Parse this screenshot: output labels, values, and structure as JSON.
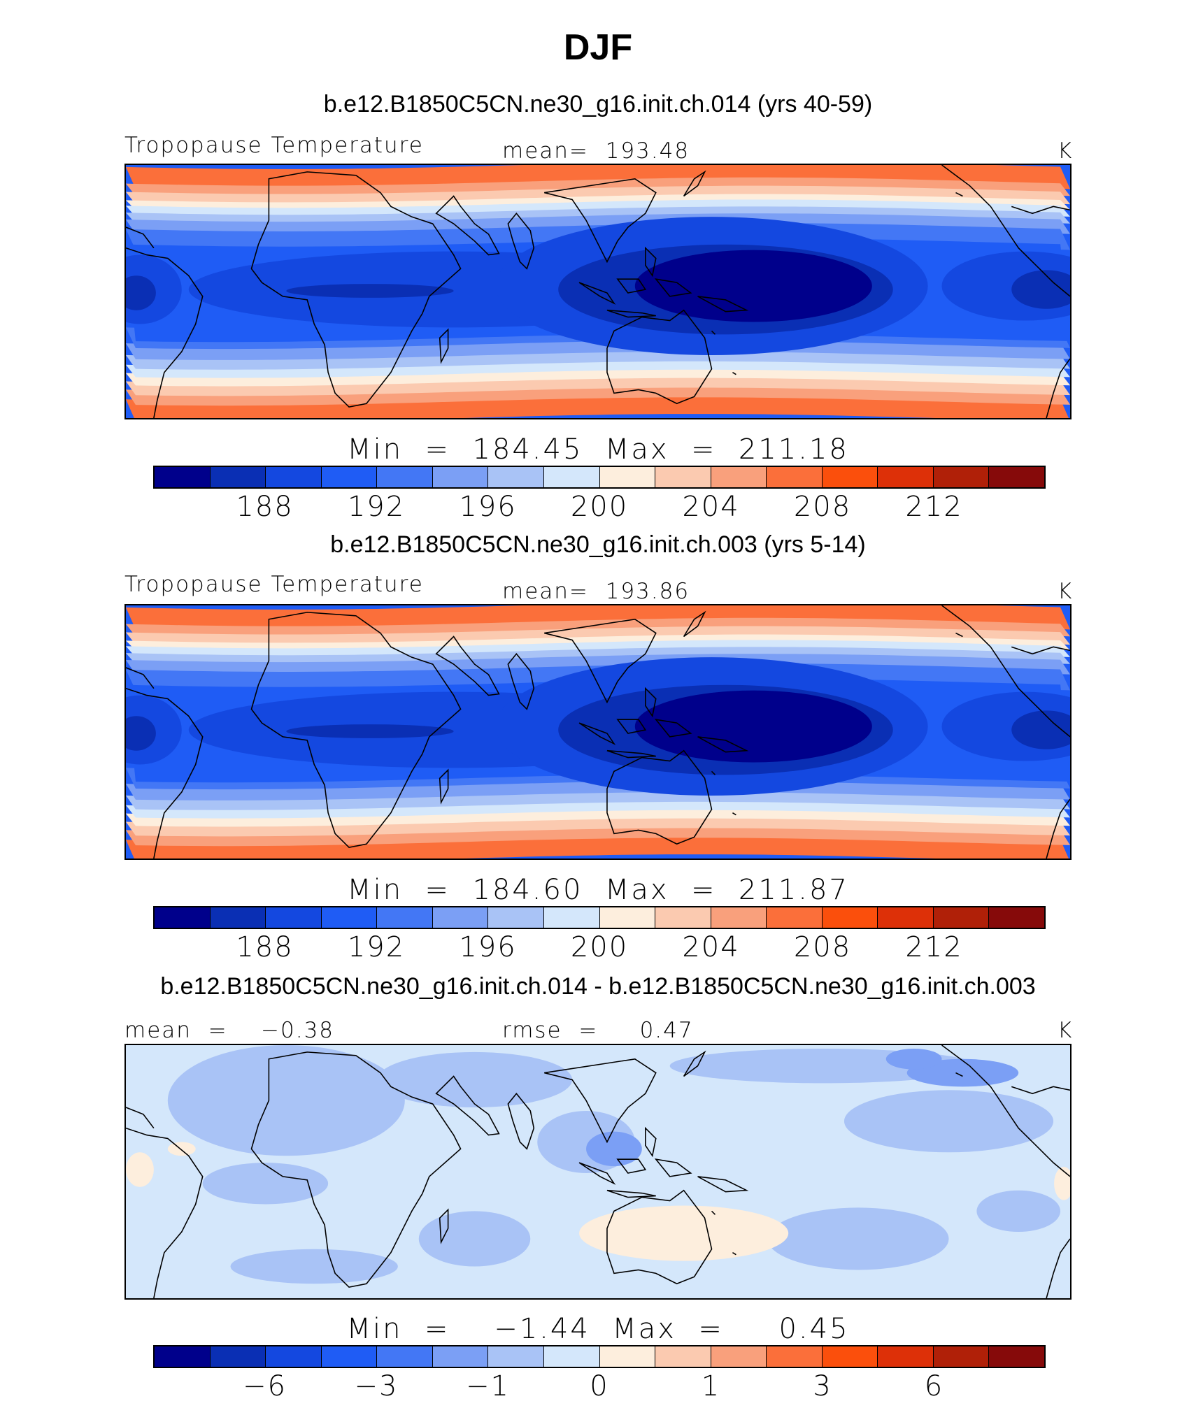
{
  "title": "DJF",
  "colors": {
    "palette": [
      "#00008b",
      "#0a2fb4",
      "#1448e0",
      "#1f5cf5",
      "#4377f5",
      "#7b9ff5",
      "#a9c3f6",
      "#d4e7fb",
      "#fdeedd",
      "#fbcab0",
      "#f9a07c",
      "#fb6f3a",
      "#fb4f0c",
      "#dd3008",
      "#b02008",
      "#860a0a"
    ],
    "coast": "#000000"
  },
  "panels": [
    {
      "case_title": "b.e12.B1850C5CN.ne30_g16.init.ch.014 (yrs 40-59)",
      "left_label": "Tropopause Temperature",
      "mid_label": "mean=  193.48",
      "right_label": "K",
      "minmax": "Min  =  184.45  Max  =  211.18",
      "ticks": [
        "188",
        "192",
        "196",
        "200",
        "204",
        "208",
        "212"
      ]
    },
    {
      "case_title": "b.e12.B1850C5CN.ne30_g16.init.ch.003 (yrs 5-14)",
      "left_label": "Tropopause Temperature",
      "mid_label": "mean=  193.86",
      "right_label": "K",
      "minmax": "Min  =  184.60  Max  =  211.87",
      "ticks": [
        "188",
        "192",
        "196",
        "200",
        "204",
        "208",
        "212"
      ]
    },
    {
      "case_title": "b.e12.B1850C5CN.ne30_g16.init.ch.014 - b.e12.B1850C5CN.ne30_g16.init.ch.003",
      "left_label": "mean  =    −0.38",
      "mid_label": "rmse  =     0.47",
      "right_label": "K",
      "minmax": "Min  =    −1.44  Max  =     0.45",
      "ticks": [
        "−6",
        "−3",
        "−1",
        "0",
        "1",
        "3",
        "6"
      ]
    }
  ]
}
